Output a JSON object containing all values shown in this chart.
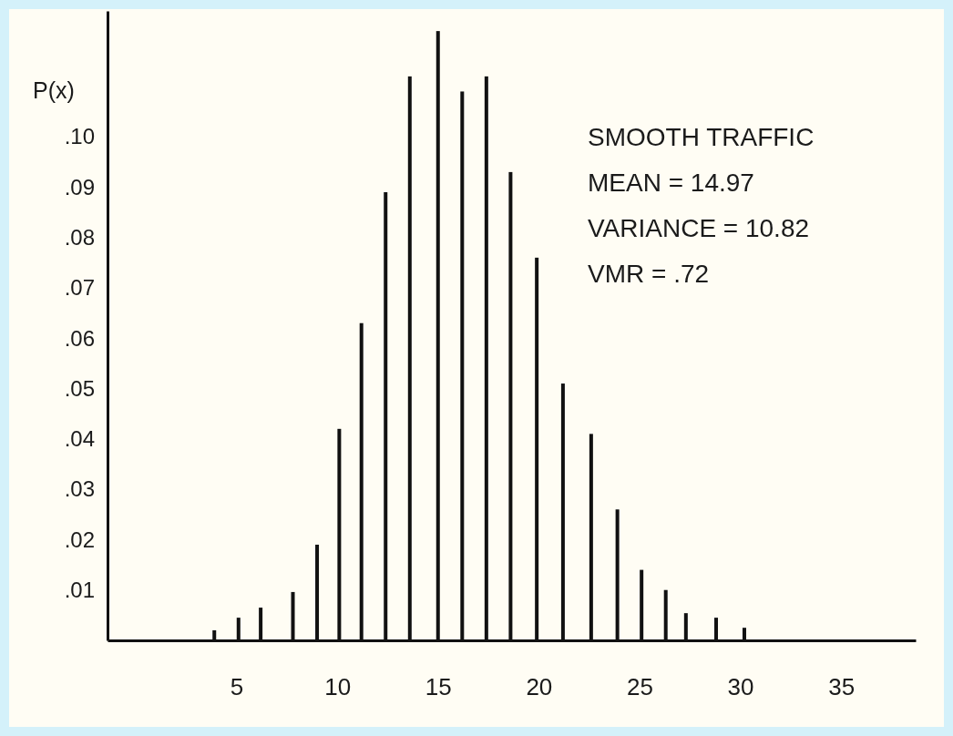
{
  "chart_data": {
    "type": "bar",
    "ylabel": "P(x)",
    "x": [
      3.9,
      5.1,
      6.2,
      7.8,
      9.0,
      10.1,
      11.2,
      12.4,
      13.6,
      15.0,
      16.2,
      17.4,
      18.6,
      19.9,
      21.2,
      22.6,
      23.9,
      25.1,
      26.3,
      27.3,
      28.8,
      30.2
    ],
    "values": [
      0.002,
      0.0045,
      0.0065,
      0.0096,
      0.019,
      0.042,
      0.063,
      0.089,
      0.112,
      0.121,
      0.109,
      0.112,
      0.093,
      0.076,
      0.051,
      0.041,
      0.026,
      0.014,
      0.01,
      0.0054,
      0.0045,
      0.0025
    ],
    "color": "#111111",
    "xlim": [
      -1.4,
      38.7
    ],
    "xticks": [
      5,
      10,
      15,
      20,
      25,
      30,
      35
    ],
    "ylim": [
      0,
      0.125
    ],
    "yticks": [
      {
        "value": 0.01,
        "label": ".01"
      },
      {
        "value": 0.02,
        "label": ".02"
      },
      {
        "value": 0.03,
        "label": ".03"
      },
      {
        "value": 0.04,
        "label": ".04"
      },
      {
        "value": 0.05,
        "label": ".05"
      },
      {
        "value": 0.06,
        "label": ".06"
      },
      {
        "value": 0.07,
        "label": ".07"
      },
      {
        "value": 0.08,
        "label": ".08"
      },
      {
        "value": 0.09,
        "label": ".09"
      },
      {
        "value": 0.1,
        "label": ".10"
      }
    ],
    "annotations": [
      "SMOOTH TRAFFIC",
      "MEAN = 14.97",
      "VARIANCE = 10.82",
      "VMR = .72"
    ],
    "grid": false
  }
}
